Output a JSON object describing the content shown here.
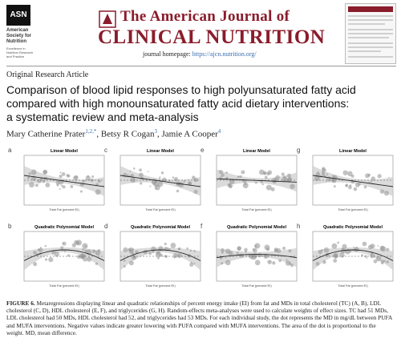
{
  "header": {
    "logo": "ASN",
    "society": [
      "American",
      "Society for",
      "Nutrition"
    ],
    "tagline": [
      "Excellence in",
      "Nutrition Research",
      "and Practice"
    ],
    "journal_line1": "The American Journal of",
    "journal_line2": "CLINICAL NUTRITION",
    "homepage_label": "journal homepage:",
    "homepage_url": "https://ajcn.nutrition.org/"
  },
  "article_type": "Original Research Article",
  "title": [
    "Comparison of blood lipid responses to high polyunsaturated fatty acid",
    "compared with high monounsaturated fatty acid dietary interventions:",
    "a systematic review and meta-analysis"
  ],
  "authors": [
    {
      "name": "Mary Catherine Prater",
      "affil": "1,2,*"
    },
    {
      "name": "Betsy R Cogan",
      "affil": "3"
    },
    {
      "name": "Jamie A Cooper",
      "affil": "4"
    }
  ],
  "figure": {
    "x_label": "Total Fat (percent EI)",
    "panels": [
      {
        "letter": "a",
        "model": "Linear Model"
      },
      {
        "letter": "c",
        "model": "Linear Model"
      },
      {
        "letter": "e",
        "model": "Linear Model"
      },
      {
        "letter": "g",
        "model": "Linear Model"
      },
      {
        "letter": "b",
        "model": "Quadratic Polynomial Model"
      },
      {
        "letter": "d",
        "model": "Quadratic Polynomial Model"
      },
      {
        "letter": "f",
        "model": "Quadratic Polynomial Model"
      },
      {
        "letter": "h",
        "model": "Quadratic Polynomial Model"
      }
    ],
    "caption_label": "FIGURE 6.",
    "caption": "Metaregressions displaying linear and quadratic relationships of percent energy intake (EI) from fat and MDs in total cholesterol (TC) (A, B), LDL cholesterol (C, D), HDL cholesterol (E, F), and triglycerides (G, H). Random-effects meta-analyses were used to calculate weights of effect sizes. TC had 51 MDs, LDL cholesterol had 50 MDs, HDL cholesterol had 52, and triglycerides had 53 MDs. For each individual study, the dot represents the MD in mg/dL between PUFA and MUFA interventions. Negative values indicate greater lowering with PUFA compared with MUFA interventions. The area of the dot is proportional to the weight. MD, mean difference."
  }
}
